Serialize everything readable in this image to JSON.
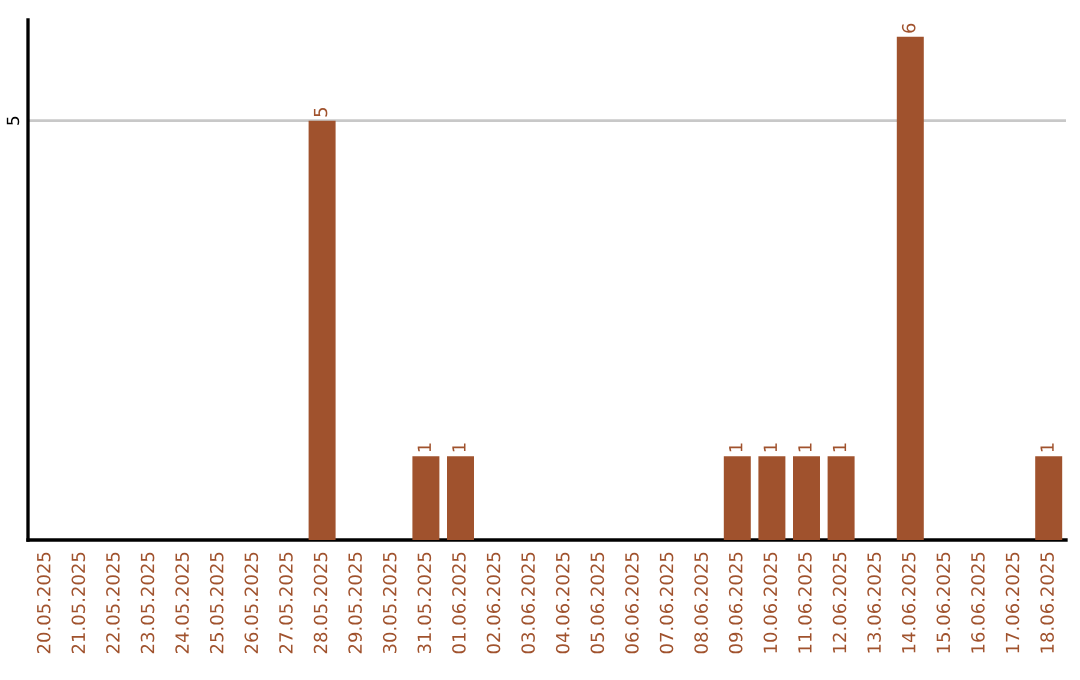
{
  "chart_data": {
    "type": "bar",
    "categories": [
      "20.05.2025",
      "21.05.2025",
      "22.05.2025",
      "23.05.2025",
      "24.05.2025",
      "25.05.2025",
      "26.05.2025",
      "27.05.2025",
      "28.05.2025",
      "29.05.2025",
      "30.05.2025",
      "31.05.2025",
      "01.06.2025",
      "02.06.2025",
      "03.06.2025",
      "04.06.2025",
      "05.06.2025",
      "06.06.2025",
      "07.06.2025",
      "08.06.2025",
      "09.06.2025",
      "10.06.2025",
      "11.06.2025",
      "12.06.2025",
      "13.06.2025",
      "14.06.2025",
      "15.06.2025",
      "16.06.2025",
      "17.06.2025",
      "18.06.2025"
    ],
    "values": [
      0,
      0,
      0,
      0,
      0,
      0,
      0,
      0,
      5,
      0,
      0,
      1,
      1,
      0,
      0,
      0,
      0,
      0,
      0,
      0,
      1,
      1,
      1,
      1,
      0,
      6,
      0,
      0,
      0,
      1
    ],
    "value_labels": [
      null,
      null,
      null,
      null,
      null,
      null,
      null,
      null,
      "5",
      null,
      null,
      "1",
      "1",
      null,
      null,
      null,
      null,
      null,
      null,
      null,
      "1",
      "1",
      "1",
      "1",
      null,
      "6",
      null,
      null,
      null,
      "1"
    ],
    "color": "#a0522d",
    "ylim": [
      0,
      6.2
    ],
    "yticks": [
      5
    ],
    "grid": "y",
    "legend": false
  }
}
